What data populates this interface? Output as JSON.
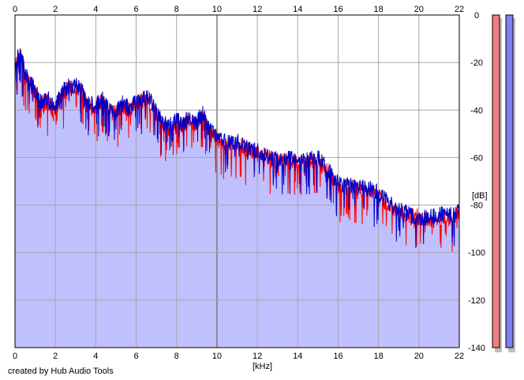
{
  "credit": "created by Hub Audio Tools",
  "colors": {
    "background": "#ffffff",
    "plot_background": "#ffffff",
    "fill_area": "#c0c0ff",
    "grid": "#a6a6a6",
    "grid_major": "#7a7a7a",
    "axis_frame": "#000000",
    "left_channel": "#ff0000",
    "right_channel": "#0000c8",
    "meter_left": "#ee7f7f",
    "meter_right": "#8080ee",
    "meter_shadow": "#bfbfbf"
  },
  "chart_data": {
    "type": "line",
    "title": "",
    "xlabel": "[kHz]",
    "ylabel": "[dB]",
    "xlim": [
      0,
      22
    ],
    "ylim": [
      -140,
      0
    ],
    "x_ticks": [
      "0",
      "2",
      "4",
      "6",
      "8",
      "10",
      "12",
      "14",
      "16",
      "18",
      "20",
      "22"
    ],
    "y_ticks": [
      "0",
      "-20",
      "-40",
      "-60",
      "-80",
      "-100",
      "-120",
      "-140"
    ],
    "grid": true,
    "area_fill_under": true,
    "series": [
      {
        "x": [
          0,
          0.25,
          0.5,
          0.8,
          1.0,
          1.3,
          1.6,
          2.0,
          2.3,
          2.6,
          3.0,
          3.3,
          3.6,
          4.0,
          4.3,
          4.6,
          5.0,
          5.3,
          5.6,
          6.0,
          6.3,
          6.6,
          7.0,
          7.3,
          7.6,
          8.0,
          8.3,
          8.6,
          9.0,
          9.3,
          9.6,
          10.0,
          10.5,
          11.0,
          11.5,
          12.0,
          12.5,
          13.0,
          13.5,
          14.0,
          14.5,
          15.0,
          15.5,
          16.0,
          16.5,
          17.0,
          17.5,
          18.0,
          18.5,
          19.0,
          19.5,
          20.0,
          20.5,
          21.0,
          21.5,
          22.0
        ],
        "values": [
          -22,
          -17,
          -25,
          -30,
          -33,
          -38,
          -36,
          -40,
          -34,
          -31,
          -30,
          -33,
          -38,
          -39,
          -36,
          -40,
          -42,
          -38,
          -40,
          -37,
          -36,
          -35,
          -42,
          -46,
          -48,
          -45,
          -47,
          -44,
          -46,
          -42,
          -49,
          -52,
          -55,
          -54,
          -57,
          -58,
          -60,
          -62,
          -61,
          -63,
          -62,
          -61,
          -66,
          -72,
          -72,
          -73,
          -74,
          -76,
          -80,
          -83,
          -84,
          -85,
          -86,
          -85,
          -85,
          -84
        ]
      },
      {
        "x": [
          0,
          0.25,
          0.5,
          0.8,
          1.0,
          1.3,
          1.6,
          2.0,
          2.3,
          2.6,
          3.0,
          3.3,
          3.6,
          4.0,
          4.3,
          4.6,
          5.0,
          5.3,
          5.6,
          6.0,
          6.3,
          6.6,
          7.0,
          7.3,
          7.6,
          8.0,
          8.3,
          8.6,
          9.0,
          9.3,
          9.6,
          10.0,
          10.5,
          11.0,
          11.5,
          12.0,
          12.5,
          13.0,
          13.5,
          14.0,
          14.5,
          15.0,
          15.5,
          16.0,
          16.5,
          17.0,
          17.5,
          18.0,
          18.5,
          19.0,
          19.5,
          20.0,
          20.5,
          21.0,
          21.5,
          22.0
        ],
        "values": [
          -21,
          -16,
          -24,
          -29,
          -32,
          -37,
          -35,
          -39,
          -33,
          -30,
          -29,
          -32,
          -37,
          -38,
          -35,
          -39,
          -41,
          -37,
          -39,
          -36,
          -35,
          -34,
          -41,
          -45,
          -47,
          -44,
          -46,
          -43,
          -45,
          -41,
          -48,
          -51,
          -54,
          -53,
          -56,
          -57,
          -59,
          -61,
          -60,
          -62,
          -61,
          -60,
          -65,
          -71,
          -71,
          -72,
          -73,
          -75,
          -79,
          -82,
          -84,
          -86,
          -85,
          -84,
          -84,
          -83
        ]
      }
    ]
  }
}
